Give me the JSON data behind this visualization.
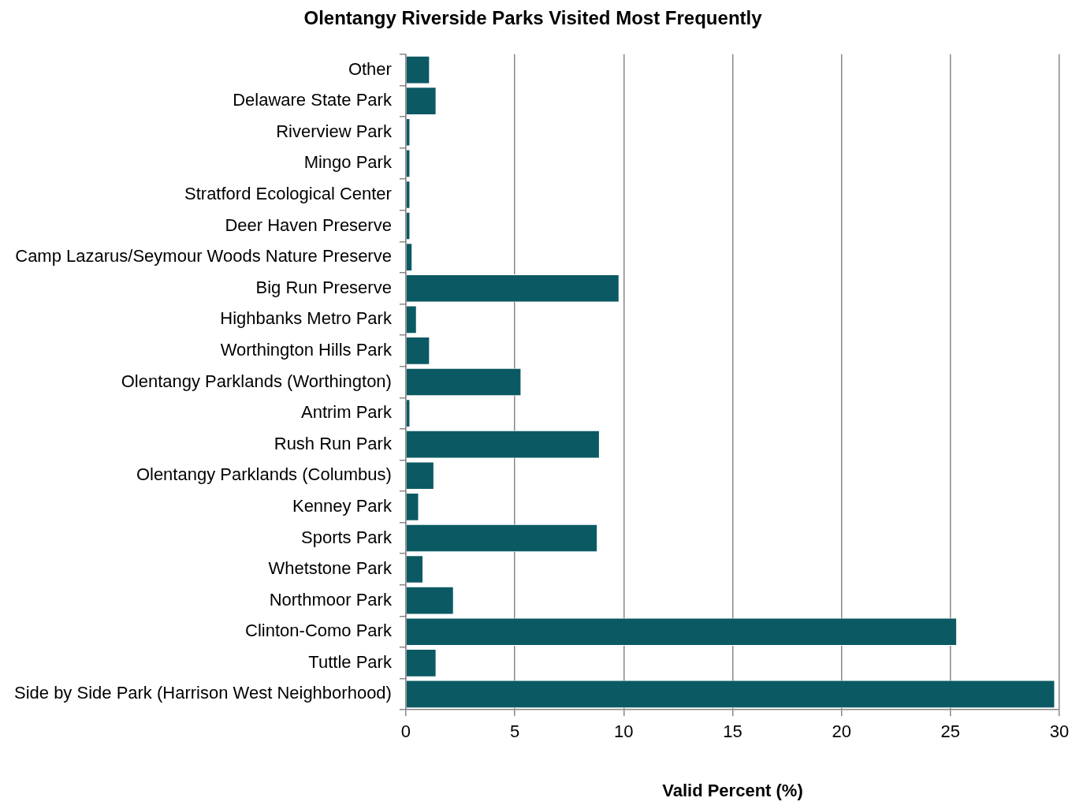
{
  "chart_data": {
    "type": "bar",
    "orientation": "horizontal",
    "title": "Olentangy Riverside Parks Visited Most Frequently",
    "xlabel": "Valid Percent (%)",
    "categories": [
      "Other",
      "Delaware State Park",
      "Riverview Park",
      "Mingo Park",
      "Stratford Ecological Center",
      "Deer Haven Preserve",
      "Camp Lazarus/Seymour Woods Nature Preserve",
      "Big Run Preserve",
      "Highbanks Metro Park",
      "Worthington Hills Park",
      "Olentangy Parklands (Worthington)",
      "Antrim Park",
      "Rush Run Park",
      "Olentangy Parklands (Columbus)",
      "Kenney Park",
      "Sports Park",
      "Whetstone Park",
      "Northmoor Park",
      "Clinton-Como Park",
      "Tuttle Park",
      "Side by Side Park (Harrison West Neighborhood)"
    ],
    "values": [
      1.1,
      1.4,
      0.2,
      0.2,
      0.2,
      0.2,
      0.3,
      9.8,
      0.5,
      1.1,
      5.3,
      0.2,
      8.9,
      1.3,
      0.6,
      8.8,
      0.8,
      2.2,
      25.3,
      1.4,
      29.8
    ],
    "color": "#0b5a63",
    "xlim": [
      0,
      30
    ],
    "xticks": [
      0,
      5,
      10,
      15,
      20,
      25,
      30
    ],
    "grid": "x",
    "legend": false
  }
}
